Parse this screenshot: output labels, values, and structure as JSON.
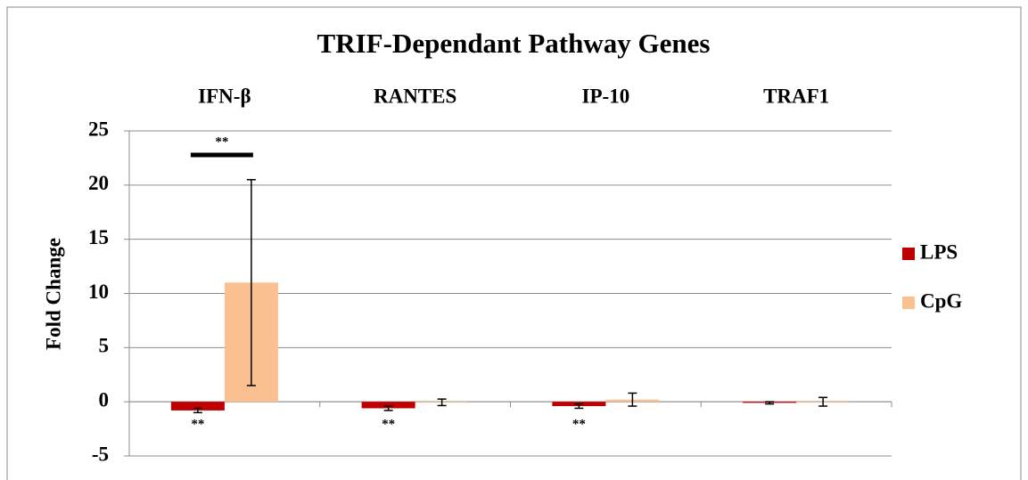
{
  "chart_data": {
    "type": "bar",
    "title": "TRIF-Dependant Pathway Genes",
    "y_label": "Fold Change",
    "categories": [
      "IFN-β",
      "RANTES",
      "IP-10",
      "TRAF1"
    ],
    "series": [
      {
        "name": "LPS",
        "color": "#c00000",
        "values": [
          -0.8,
          -0.6,
          -0.4,
          -0.1
        ],
        "errors": [
          0.2,
          0.2,
          0.2,
          0.1
        ],
        "markers": [
          "**",
          "**",
          "**",
          null
        ]
      },
      {
        "name": "CpG",
        "color": "#fac090",
        "values": [
          11.0,
          -0.05,
          0.2,
          0.0
        ],
        "errors": [
          9.5,
          0.3,
          0.6,
          0.4
        ]
      }
    ],
    "comparison_labels": [
      "**",
      null,
      null,
      null
    ],
    "ylim": [
      -5,
      25
    ],
    "yticks": [
      -5,
      0,
      5,
      10,
      15,
      20,
      25
    ],
    "grid": true,
    "legend": "right"
  }
}
